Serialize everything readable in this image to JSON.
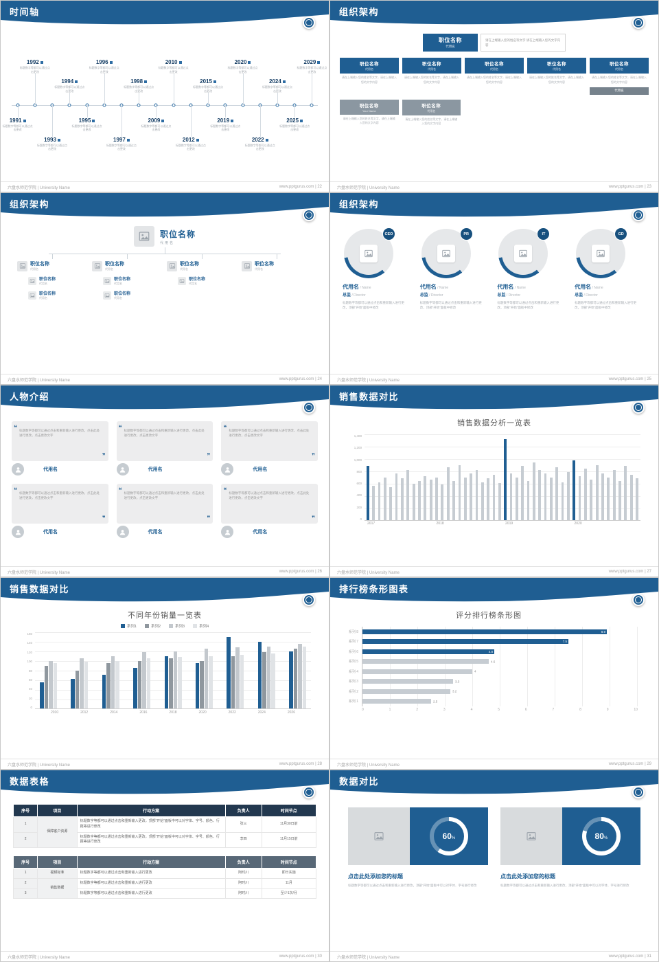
{
  "footer": {
    "left": "六盘水师范学院 | University Name",
    "site": "www.pptgurus.com"
  },
  "theme": {
    "accent_blue": "#1f5e92",
    "navy": "#22384f",
    "bar_gray": "#c6ccd2",
    "panel_gray": "#ededee"
  },
  "chart_data": [
    {
      "type": "bar",
      "title": "销售数据分析一览表",
      "x_groups": [
        "2017",
        "2018",
        "2019",
        "2020"
      ],
      "y_ticks": [
        "1,400",
        "1,200",
        "1,000",
        "800",
        "600",
        "400",
        "200",
        "0"
      ],
      "ylim": [
        0,
        1400
      ],
      "bar_color": "#c6ccd2",
      "highlight_color": "#1f5e92",
      "highlight_indexes": [
        0,
        24,
        36
      ],
      "values": [
        880,
        560,
        620,
        700,
        540,
        760,
        680,
        820,
        590,
        640,
        720,
        660,
        700,
        580,
        860,
        640,
        900,
        700,
        760,
        820,
        620,
        680,
        740,
        600,
        1320,
        760,
        700,
        880,
        640,
        940,
        820,
        760,
        700,
        860,
        620,
        780,
        980,
        720,
        840,
        660,
        900,
        760,
        700,
        820,
        640,
        880,
        740,
        680
      ]
    },
    {
      "type": "grouped-bar",
      "title": "不同年份销量一览表",
      "categories": [
        "2010",
        "2012",
        "2014",
        "2016",
        "2018",
        "2020",
        "2022",
        "2024",
        "2026"
      ],
      "y_ticks": [
        "160",
        "140",
        "120",
        "100",
        "80",
        "60",
        "40",
        "20",
        "0"
      ],
      "ylim": [
        0,
        160
      ],
      "legend_position": "top",
      "series": [
        {
          "name": "系列1",
          "color": "#1f5e92",
          "values": [
            55,
            62,
            70,
            85,
            110,
            95,
            150,
            140,
            120
          ]
        },
        {
          "name": "系列2",
          "color": "#8f979e",
          "values": [
            90,
            80,
            95,
            100,
            105,
            100,
            110,
            118,
            125
          ]
        },
        {
          "name": "系列3",
          "color": "#c3c8cd",
          "values": [
            100,
            105,
            110,
            118,
            120,
            125,
            128,
            130,
            135
          ]
        },
        {
          "name": "系列4",
          "color": "#e0e3e6",
          "values": [
            95,
            98,
            100,
            105,
            108,
            110,
            112,
            115,
            130
          ]
        }
      ]
    },
    {
      "type": "hbar",
      "title": "评分排行榜条形图",
      "categories": [
        "系列 8",
        "系列 7",
        "系列 6",
        "系列 5",
        "系列 4",
        "系列 3",
        "系列 2",
        "系列 1"
      ],
      "values": [
        8.9,
        7.5,
        4.8,
        4.6,
        4,
        3.3,
        3.2,
        2.5
      ],
      "x_ticks": [
        "0",
        "1",
        "2",
        "3",
        "4",
        "5",
        "6",
        "7",
        "8",
        "9",
        "10"
      ],
      "xlim": [
        0,
        10
      ],
      "highlight_count": 3,
      "bar_color": "#c6ccd2",
      "highlight_color": "#1f5e92"
    },
    {
      "type": "pie",
      "label": "60",
      "unit": "%",
      "values": [
        60,
        40
      ]
    },
    {
      "type": "pie",
      "label": "80",
      "unit": "%",
      "values": [
        80,
        20
      ]
    }
  ],
  "slides": {
    "timeline": {
      "title": "时间轴",
      "page": "22",
      "caption": "标题数字等都可以通过点击更改",
      "years": [
        "1991",
        "1992",
        "1993",
        "1994",
        "1995",
        "1996",
        "1997",
        "1998",
        "2009",
        "2010",
        "2012",
        "2015",
        "2019",
        "2020",
        "2022",
        "2024",
        "2025",
        "2029"
      ]
    },
    "org1": {
      "title": "组织架构",
      "page": "23",
      "root": {
        "title": "职位名称",
        "sub": "代用名"
      },
      "note": "请在上端输入您的姓名等文字 请在上端输入您的文字内容",
      "box_caption": "请在上端输入您的姓名等文字，请在上端输入您的文字内容",
      "row1": [
        {
          "title": "职位名称",
          "sub": "代用名"
        },
        {
          "title": "职位名称",
          "sub": "代用名"
        },
        {
          "title": "职位名称",
          "sub": "代用名"
        },
        {
          "title": "职位名称",
          "sub": "代用名"
        },
        {
          "title": "职位名称",
          "sub": "代用名"
        }
      ],
      "mini_label": "代用名",
      "row2": [
        {
          "title": "职位名称",
          "sub": "Your Name"
        },
        {
          "title": "职位名称",
          "sub": "代用名"
        }
      ]
    },
    "org2": {
      "title": "组织架构",
      "page": "24",
      "root": {
        "title": "职位名称",
        "sub": "代用名"
      },
      "node_title": "职位名称",
      "node_sub": "代用名",
      "children_counts": [
        2,
        2,
        1,
        0
      ]
    },
    "org3": {
      "title": "组织架构",
      "page": "25",
      "badges": [
        "CEO",
        "PR",
        "IT",
        "GD"
      ],
      "name": "代用名",
      "name_suffix": "/ Name",
      "role": "总监",
      "role_suffix": "/ Director",
      "desc": "标题数字等都可以通过点击和重新输入进行更改，顶部“开始”面板中修改"
    },
    "people": {
      "title": "人物介绍",
      "page": "26",
      "name": "代用名",
      "quote": "标题数字等都可以通过点击和重新输入进行更改，点击此处进行更改，点击更改文字"
    },
    "chart1": {
      "title": "销售数据对比",
      "page": "27",
      "chart_title": "销售数据分析一览表"
    },
    "chart2": {
      "title": "销售数据对比",
      "page": "28",
      "chart_title": "不同年份销量一览表"
    },
    "chart3": {
      "title": "排行榜条形图表",
      "page": "29",
      "chart_title": "评分排行榜条形图"
    },
    "tables": {
      "title": "数据表格",
      "page": "30",
      "headers": [
        "序号",
        "项目",
        "行动方案",
        "负责人",
        "时间节点"
      ],
      "table1": {
        "project": "保障客户资源",
        "rows": [
          {
            "no": "1",
            "plan": "标题数字等都可以通过点击和重新输入更改，顶部“开始”面板中可以对字体、字号、颜色、行距等进行修改",
            "owner": "张三",
            "time": "11月30日前"
          },
          {
            "no": "2",
            "plan": "标题数字等都可以通过点击和重新输入更改，顶部“开始”面板中可以对字体、字号、颜色、行距等进行修改",
            "owner": "李四",
            "time": "11月15日前"
          }
        ]
      },
      "table2": {
        "projects": [
          {
            "label": "视频标准",
            "span": 1
          },
          {
            "label": "销售数据",
            "span": 2
          }
        ],
        "rows": [
          {
            "no": "1",
            "plan": "标题数字等都可以通过点击和重新输入进行更改",
            "owner": "阿时川",
            "time": "即日实施"
          },
          {
            "no": "2",
            "plan": "标题数字等都可以通过点击和重新输入进行更改",
            "owner": "阿时川",
            "time": "11月"
          },
          {
            "no": "3",
            "plan": "标题数字等都可以通过点击和重新输入进行更改",
            "owner": "阿时川",
            "time": "至少1次/月"
          }
        ]
      }
    },
    "compare": {
      "title": "数据对比",
      "page": "31",
      "panels": [
        {
          "heading": "点击此处添加您的标题",
          "desc": "标题数字等都可以通过点击和重新输入进行更改，顶部“开始”面板中可以对字体、字号进行修改"
        },
        {
          "heading": "点击此处添加您的标题",
          "desc": "标题数字等都可以通过点击和重新输入进行更改，顶部“开始”面板中可以对字体、字号进行修改"
        }
      ]
    }
  }
}
